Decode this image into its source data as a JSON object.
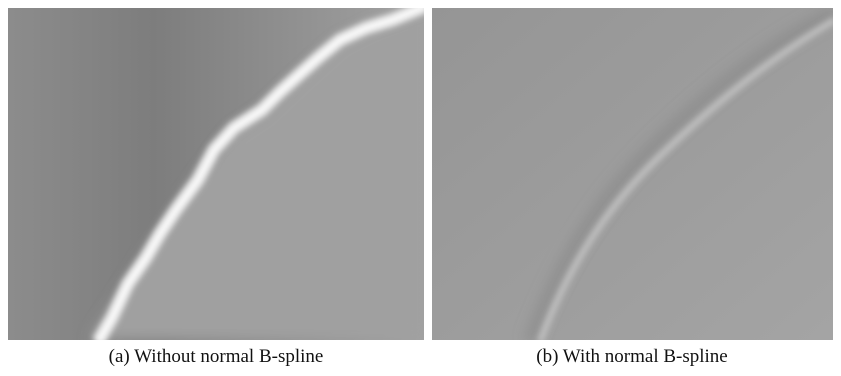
{
  "figure": {
    "panels": [
      {
        "caption": "(a) Without normal B-spline"
      },
      {
        "caption": "(b) With normal B-spline"
      }
    ]
  }
}
